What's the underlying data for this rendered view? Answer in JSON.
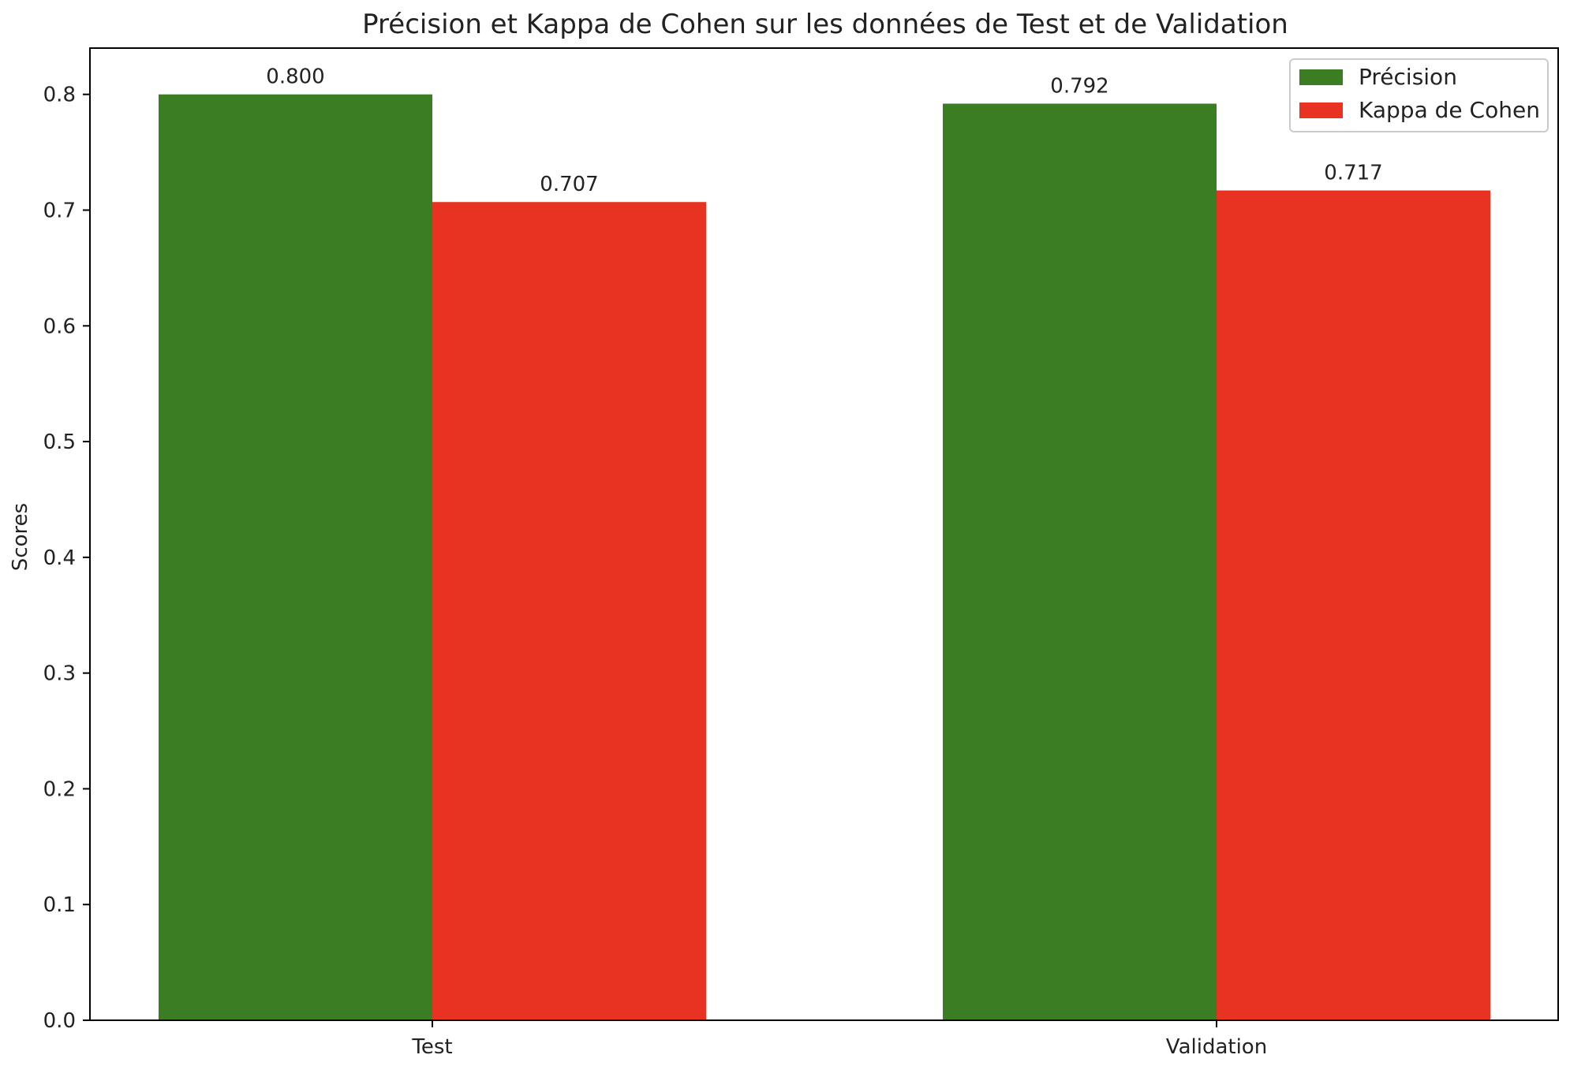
{
  "chart_data": {
    "type": "bar",
    "title": "Précision et Kappa de Cohen sur les données de Test et de Validation",
    "xlabel": "",
    "ylabel": "Scores",
    "categories": [
      "Test",
      "Validation"
    ],
    "series": [
      {
        "name": "Précision",
        "values": [
          0.8,
          0.792
        ],
        "labels": [
          "0.800",
          "0.792"
        ],
        "color": "#3a7d22"
      },
      {
        "name": "Kappa de Cohen",
        "values": [
          0.707,
          0.717
        ],
        "labels": [
          "0.707",
          "0.717"
        ],
        "color": "#e83323"
      }
    ],
    "ylim": [
      0,
      0.84
    ],
    "yticks": [
      "0.0",
      "0.1",
      "0.2",
      "0.3",
      "0.4",
      "0.5",
      "0.6",
      "0.7",
      "0.8"
    ],
    "grid": false,
    "legend_position": "top-right"
  }
}
